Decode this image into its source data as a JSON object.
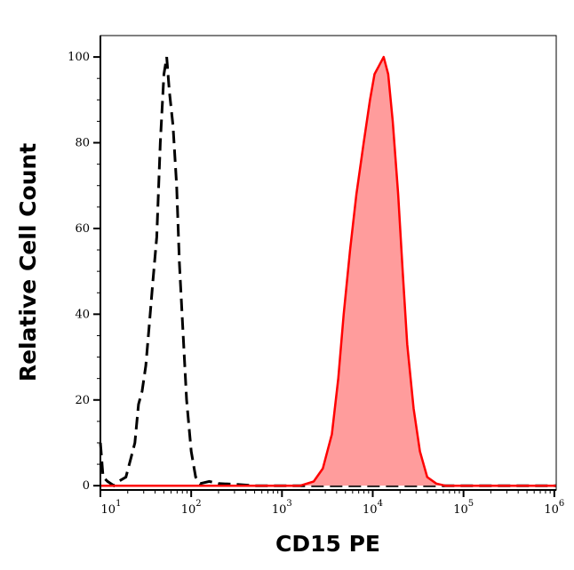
{
  "chart_data": {
    "type": "area",
    "title": "",
    "xlabel": "CD15 PE",
    "ylabel": "Relative Cell Count",
    "xscale": "log",
    "xlim": [
      10,
      1050000
    ],
    "ylim": [
      -1,
      105
    ],
    "grid": false,
    "xticks": [
      {
        "base": "10",
        "exp": "1",
        "value": 10
      },
      {
        "base": "10",
        "exp": "2",
        "value": 100
      },
      {
        "base": "10",
        "exp": "3",
        "value": 1000
      },
      {
        "base": "10",
        "exp": "4",
        "value": 10000
      },
      {
        "base": "10",
        "exp": "5",
        "value": 100000
      },
      {
        "base": "10",
        "exp": "6",
        "value": 1000000
      }
    ],
    "yticks": [
      "0",
      "20",
      "40",
      "60",
      "80",
      "100"
    ],
    "series": [
      {
        "style": "dashed-line",
        "color": "#000000",
        "x": [
          10,
          10.7,
          12,
          14.1,
          15.8,
          19.1,
          21.4,
          24,
          26.3,
          28.8,
          31.6,
          34.7,
          38,
          41.7,
          45.7,
          50.1,
          53.7,
          57.5,
          63.1,
          69.2,
          74.1,
          79.4,
          89.1,
          100,
          112,
          126,
          158,
          200,
          316,
          501,
          1000,
          1050000
        ],
        "y": [
          10,
          2,
          1,
          0,
          1,
          2,
          6,
          10,
          19,
          22,
          28,
          38,
          48,
          58,
          80,
          96,
          100,
          92,
          84,
          70,
          52,
          40,
          20,
          8,
          2,
          0.5,
          1,
          0.5,
          0.3,
          0,
          0,
          0
        ]
      },
      {
        "style": "filled",
        "color": "#ff0000",
        "fill": "#ff9c9c",
        "x": [
          10,
          1585,
          2239,
          2818,
          3548,
          4169,
          4786,
          5623,
          6607,
          7943,
          9333,
          10471,
          11749,
          13183,
          14791,
          16596,
          19055,
          21380,
          23988,
          28184,
          33113,
          39811,
          50119,
          63096,
          1050000
        ],
        "y": [
          0,
          0,
          1,
          4,
          12,
          25,
          40,
          55,
          68,
          80,
          90,
          96,
          98,
          100,
          96,
          85,
          68,
          50,
          33,
          18,
          8,
          2,
          0.5,
          0,
          0
        ]
      }
    ]
  }
}
